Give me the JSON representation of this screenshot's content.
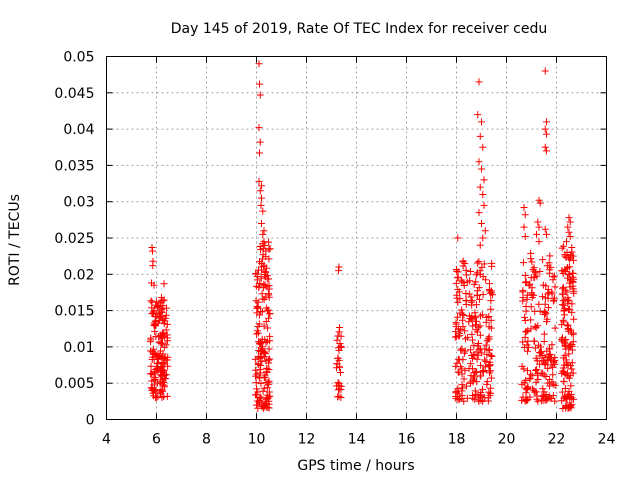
{
  "chart_data": {
    "type": "scatter",
    "title": "Day 145 of 2019, Rate Of TEC Index for receiver cedu",
    "xlabel": "GPS time / hours",
    "ylabel": "ROTI / TECUs",
    "xlim": [
      4,
      24
    ],
    "ylim": [
      0,
      0.05
    ],
    "xticks": [
      "4",
      "6",
      "8",
      "10",
      "12",
      "14",
      "16",
      "18",
      "20",
      "22",
      "24"
    ],
    "yticks": [
      "0",
      "0.005",
      "0.01",
      "0.015",
      "0.02",
      "0.025",
      "0.03",
      "0.035",
      "0.04",
      "0.045",
      "0.05"
    ],
    "grid": true,
    "marker": "+",
    "color": "#ff0000",
    "clusters": [
      {
        "x_range": [
          5.75,
          6.45
        ],
        "y_range": [
          0.003,
          0.0165
        ],
        "count": 170,
        "extra": [
          [
            5.82,
            0.0237
          ],
          [
            5.84,
            0.0232
          ],
          [
            5.86,
            0.0218
          ],
          [
            5.85,
            0.0212
          ],
          [
            5.8,
            0.0188
          ],
          [
            5.9,
            0.0185
          ],
          [
            6.3,
            0.0187
          ],
          [
            6.2,
            0.0168
          ]
        ]
      },
      {
        "x_range": [
          9.95,
          10.55
        ],
        "y_range": [
          0.0015,
          0.0245
        ],
        "count": 170,
        "extra": [
          [
            10.1,
            0.049
          ],
          [
            10.12,
            0.0462
          ],
          [
            10.15,
            0.0447
          ],
          [
            10.1,
            0.0402
          ],
          [
            10.15,
            0.0382
          ],
          [
            10.12,
            0.0367
          ],
          [
            10.1,
            0.0328
          ],
          [
            10.2,
            0.0322
          ],
          [
            10.15,
            0.0315
          ],
          [
            10.2,
            0.0305
          ],
          [
            10.18,
            0.0295
          ],
          [
            10.25,
            0.0287
          ],
          [
            10.2,
            0.027
          ],
          [
            10.3,
            0.026
          ],
          [
            10.25,
            0.0255
          ],
          [
            10.3,
            0.0245
          ]
        ]
      },
      {
        "x_range": [
          13.2,
          13.4
        ],
        "y_range": [
          0.003,
          0.0135
        ],
        "count": 30,
        "extra": [
          [
            13.3,
            0.021
          ],
          [
            13.28,
            0.0205
          ]
        ]
      },
      {
        "x_range": [
          17.95,
          19.45
        ],
        "y_range": [
          0.0025,
          0.0225
        ],
        "count": 230,
        "extra": [
          [
            18.9,
            0.0465
          ],
          [
            18.85,
            0.042
          ],
          [
            19.0,
            0.041
          ],
          [
            18.95,
            0.039
          ],
          [
            19.05,
            0.0375
          ],
          [
            18.9,
            0.0355
          ],
          [
            19.0,
            0.0345
          ],
          [
            19.1,
            0.033
          ],
          [
            18.95,
            0.032
          ],
          [
            19.05,
            0.031
          ],
          [
            19.1,
            0.0295
          ],
          [
            18.9,
            0.0285
          ],
          [
            19.0,
            0.027
          ],
          [
            19.15,
            0.026
          ],
          [
            19.05,
            0.025
          ],
          [
            18.95,
            0.024
          ],
          [
            18.05,
            0.025
          ]
        ]
      },
      {
        "x_range": [
          20.6,
          21.95
        ],
        "y_range": [
          0.0025,
          0.023
        ],
        "count": 190,
        "extra": [
          [
            20.7,
            0.0292
          ],
          [
            20.75,
            0.0282
          ],
          [
            20.7,
            0.0265
          ],
          [
            20.75,
            0.0252
          ],
          [
            21.3,
            0.0302
          ],
          [
            21.35,
            0.0298
          ],
          [
            21.25,
            0.0272
          ],
          [
            21.3,
            0.0265
          ],
          [
            21.2,
            0.0255
          ],
          [
            21.3,
            0.0245
          ],
          [
            21.55,
            0.048
          ],
          [
            21.6,
            0.041
          ],
          [
            21.55,
            0.04
          ],
          [
            21.6,
            0.0393
          ],
          [
            21.55,
            0.0375
          ],
          [
            21.6,
            0.037
          ],
          [
            21.55,
            0.0262
          ],
          [
            21.6,
            0.0255
          ]
        ]
      },
      {
        "x_range": [
          22.2,
          22.7
        ],
        "y_range": [
          0.0015,
          0.024
        ],
        "count": 150,
        "extra": [
          [
            22.5,
            0.0278
          ],
          [
            22.55,
            0.0272
          ],
          [
            22.45,
            0.0265
          ],
          [
            22.5,
            0.0258
          ],
          [
            22.55,
            0.0252
          ],
          [
            22.4,
            0.0245
          ]
        ]
      }
    ]
  }
}
